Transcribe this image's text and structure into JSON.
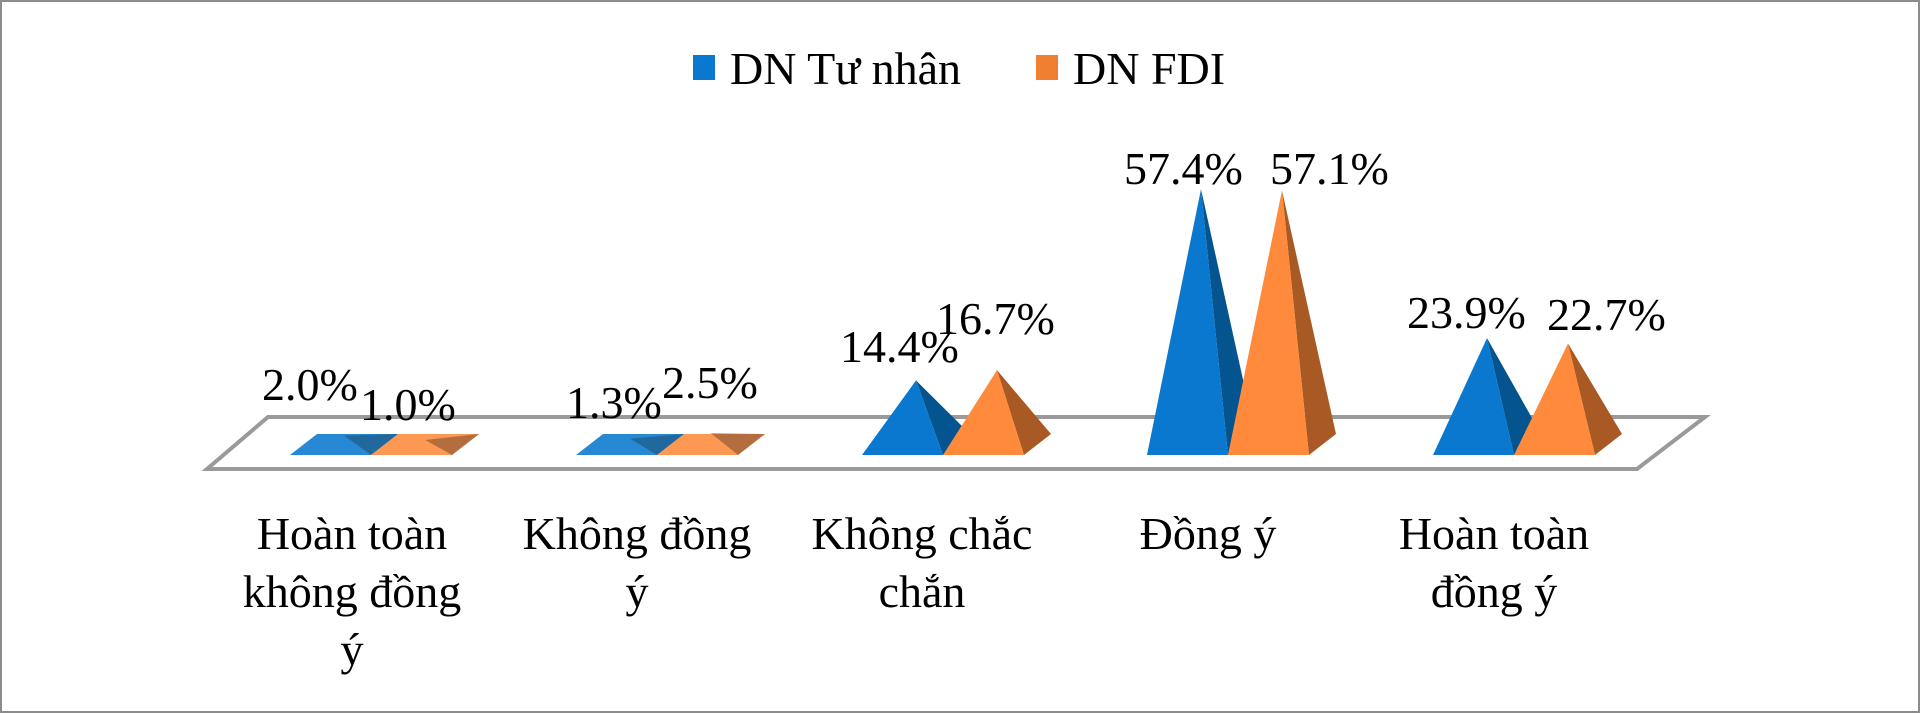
{
  "legend": {
    "items": [
      {
        "label": "DN Tư nhân",
        "color": "#0A78CF"
      },
      {
        "label": "DN FDI",
        "color": "#F07F32"
      }
    ]
  },
  "colors": {
    "blue_front": "#0A78CF",
    "blue_side": "#03548F",
    "orange_front": "#FF8A3C",
    "orange_side": "#A95A24",
    "floor_stroke": "#9a9a9a",
    "frame": "#8c8c8c"
  },
  "chart_data": {
    "type": "bar",
    "subtype": "3d-pyramid-clustered",
    "title": "",
    "xlabel": "",
    "ylabel": "",
    "categories": [
      "Hoàn toàn không đồng ý",
      "Không đồng ý",
      "Không chắc chắn",
      "Đồng ý",
      "Hoàn toàn đồng ý"
    ],
    "category_lines": [
      [
        "Hoàn toàn",
        "không đồng",
        "ý"
      ],
      [
        "Không đồng",
        "ý"
      ],
      [
        "Không chắc",
        "chắn"
      ],
      [
        "Đồng ý"
      ],
      [
        "Hoàn toàn",
        "đồng ý"
      ]
    ],
    "series": [
      {
        "name": "DN Tư nhân",
        "values": [
          2.0,
          1.3,
          14.4,
          57.4,
          23.9
        ],
        "labels": [
          "2.0%",
          "1.3%",
          "14.4%",
          "57.4%",
          "23.9%"
        ]
      },
      {
        "name": "DN FDI",
        "values": [
          1.0,
          2.5,
          16.7,
          57.1,
          22.7
        ],
        "labels": [
          "1.0%",
          "2.5%",
          "16.7%",
          "57.1%",
          "22.7%"
        ]
      }
    ],
    "unit": "%",
    "grid": false,
    "axes_visible": false,
    "legend_position": "top"
  }
}
